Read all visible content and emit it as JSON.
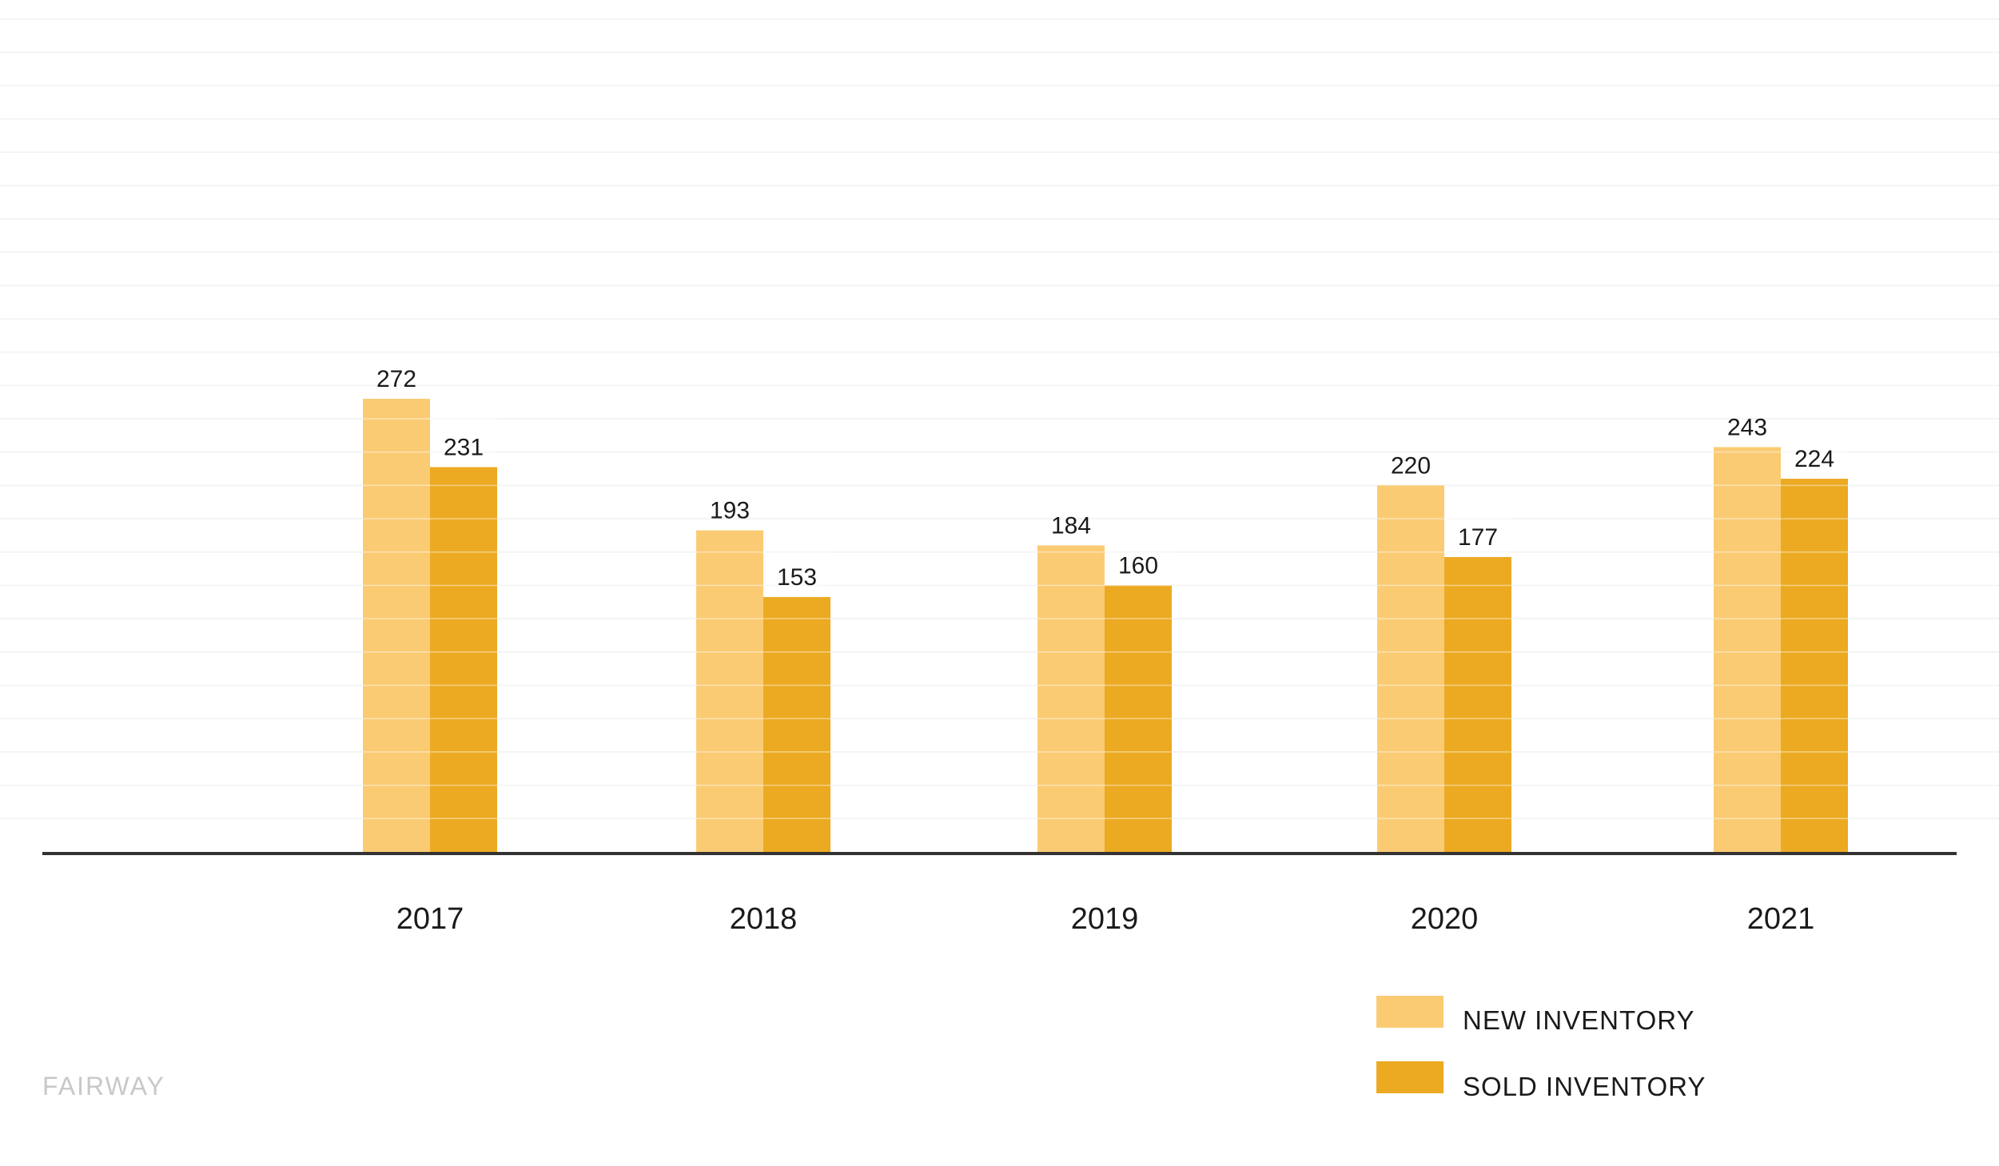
{
  "chart_data": {
    "type": "bar",
    "categories": [
      "2017",
      "2018",
      "2019",
      "2020",
      "2021"
    ],
    "series": [
      {
        "name": "NEW INVENTORY",
        "values": [
          272,
          193,
          184,
          220,
          243
        ],
        "color": "#FBCB74"
      },
      {
        "name": "SOLD INVENTORY",
        "values": [
          231,
          153,
          160,
          177,
          224
        ],
        "color": "#EBAA22"
      }
    ],
    "title": "",
    "xlabel": "",
    "ylabel": "",
    "ylim": [
      0,
      500
    ],
    "grid": true,
    "legend_position": "bottom-right"
  },
  "branding": {
    "text": "FAIRWAY"
  }
}
